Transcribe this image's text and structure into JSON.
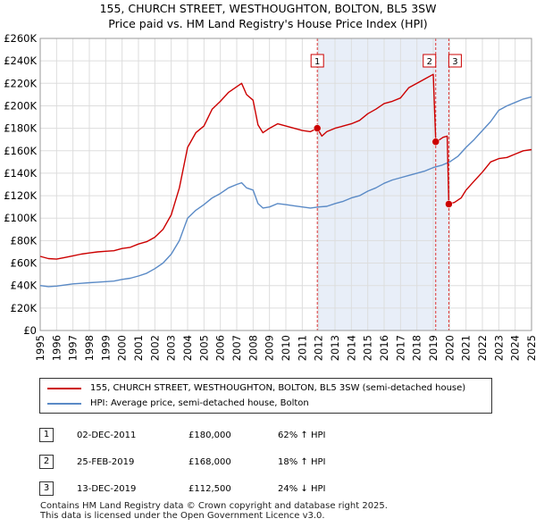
{
  "chart_data": {
    "type": "line",
    "title": "155, CHURCH STREET, WESTHOUGHTON, BOLTON, BL5 3SW",
    "subtitle": "Price paid vs. HM Land Registry's House Price Index (HPI)",
    "xlim": [
      1995,
      2025
    ],
    "ylim": [
      0,
      260000
    ],
    "x_ticks": [
      1995,
      1996,
      1997,
      1998,
      1999,
      2000,
      2001,
      2002,
      2003,
      2004,
      2005,
      2006,
      2007,
      2008,
      2009,
      2010,
      2011,
      2012,
      2013,
      2014,
      2015,
      2016,
      2017,
      2018,
      2019,
      2020,
      2021,
      2022,
      2023,
      2024,
      2025
    ],
    "y_ticks": [
      0,
      20000,
      40000,
      60000,
      80000,
      100000,
      120000,
      140000,
      160000,
      180000,
      200000,
      220000,
      240000,
      260000
    ],
    "y_tick_labels": [
      "£0",
      "£20K",
      "£40K",
      "£60K",
      "£80K",
      "£100K",
      "£120K",
      "£140K",
      "£160K",
      "£180K",
      "£200K",
      "£220K",
      "£240K",
      "£260K"
    ],
    "series": [
      {
        "name": "155, CHURCH STREET, WESTHOUGHTON, BOLTON, BL5 3SW (semi-detached house)",
        "color": "#cc0000",
        "x": [
          1995.0,
          1995.5,
          1996.0,
          1996.5,
          1997.0,
          1997.5,
          1998.0,
          1998.5,
          1999.0,
          1999.5,
          2000.0,
          2000.5,
          2001.0,
          2001.5,
          2002.0,
          2002.5,
          2003.0,
          2003.5,
          2004.0,
          2004.5,
          2005.0,
          2005.5,
          2006.0,
          2006.5,
          2007.0,
          2007.3,
          2007.6,
          2008.0,
          2008.3,
          2008.6,
          2009.0,
          2009.5,
          2010.0,
          2010.5,
          2011.0,
          2011.5,
          2011.92,
          2012.2,
          2012.5,
          2013.0,
          2013.5,
          2014.0,
          2014.5,
          2015.0,
          2015.5,
          2016.0,
          2016.5,
          2017.0,
          2017.5,
          2018.0,
          2018.5,
          2019.0,
          2019.15,
          2019.3,
          2019.6,
          2019.85,
          2019.95,
          2020.3,
          2020.7,
          2021.0,
          2021.5,
          2022.0,
          2022.5,
          2023.0,
          2023.5,
          2024.0,
          2024.5,
          2025.0
        ],
        "values": [
          66000,
          64000,
          63500,
          65000,
          66500,
          68000,
          69000,
          70000,
          70500,
          71000,
          73000,
          74000,
          77000,
          79000,
          83000,
          90000,
          103000,
          127000,
          163000,
          176000,
          182000,
          197000,
          204000,
          212000,
          217000,
          220000,
          210000,
          205000,
          183000,
          176000,
          180000,
          184000,
          182000,
          180000,
          178000,
          177000,
          180000,
          173000,
          177000,
          180000,
          182000,
          184000,
          187000,
          193000,
          197000,
          202000,
          204000,
          207000,
          216000,
          220000,
          224000,
          228000,
          168000,
          169000,
          172000,
          173000,
          112500,
          114000,
          118000,
          125000,
          133000,
          141000,
          150000,
          153000,
          154000,
          157000,
          160000,
          161000
        ]
      },
      {
        "name": "HPI: Average price, semi-detached house, Bolton",
        "color": "#5a8ac6",
        "x": [
          1995.0,
          1995.5,
          1996.0,
          1996.5,
          1997.0,
          1997.5,
          1998.0,
          1998.5,
          1999.0,
          1999.5,
          2000.0,
          2000.5,
          2001.0,
          2001.5,
          2002.0,
          2002.5,
          2003.0,
          2003.5,
          2004.0,
          2004.5,
          2005.0,
          2005.5,
          2006.0,
          2006.5,
          2007.0,
          2007.3,
          2007.6,
          2008.0,
          2008.3,
          2008.6,
          2009.0,
          2009.5,
          2010.0,
          2010.5,
          2011.0,
          2011.5,
          2012.0,
          2012.5,
          2013.0,
          2013.5,
          2014.0,
          2014.5,
          2015.0,
          2015.5,
          2016.0,
          2016.5,
          2017.0,
          2017.5,
          2018.0,
          2018.5,
          2019.0,
          2019.5,
          2020.0,
          2020.5,
          2021.0,
          2021.5,
          2022.0,
          2022.5,
          2023.0,
          2023.5,
          2024.0,
          2024.5,
          2025.0
        ],
        "values": [
          40000,
          39000,
          39500,
          40500,
          41500,
          42000,
          42500,
          43000,
          43500,
          44000,
          45500,
          46500,
          48500,
          51000,
          55000,
          60000,
          68000,
          80000,
          100000,
          107000,
          112000,
          118000,
          122000,
          127000,
          130000,
          131500,
          127000,
          125000,
          113000,
          109000,
          110000,
          113000,
          112000,
          111000,
          110000,
          109000,
          110000,
          110500,
          113000,
          115000,
          118000,
          120000,
          124000,
          127000,
          131000,
          134000,
          136000,
          138000,
          140000,
          142000,
          145000,
          147000,
          150000,
          155000,
          163000,
          170000,
          178000,
          186000,
          196000,
          200000,
          203000,
          206000,
          208000
        ]
      }
    ],
    "sale_markers": [
      {
        "label": "1",
        "x": 2011.92,
        "value": 180000
      },
      {
        "label": "2",
        "x": 2019.15,
        "value": 168000
      },
      {
        "label": "3",
        "x": 2019.95,
        "value": 112500
      }
    ],
    "shaded_region": [
      2011.92,
      2019.95
    ]
  },
  "legend": {
    "property": "155, CHURCH STREET, WESTHOUGHTON, BOLTON, BL5 3SW (semi-detached house)",
    "hpi": "HPI: Average price, semi-detached house, Bolton"
  },
  "sales": [
    {
      "num": "1",
      "date": "02-DEC-2011",
      "price": "£180,000",
      "hpi": "62% ↑ HPI"
    },
    {
      "num": "2",
      "date": "25-FEB-2019",
      "price": "£168,000",
      "hpi": "18% ↑ HPI"
    },
    {
      "num": "3",
      "date": "13-DEC-2019",
      "price": "£112,500",
      "hpi": "24% ↓ HPI"
    }
  ],
  "footer": {
    "line1": "Contains HM Land Registry data © Crown copyright and database right 2025.",
    "line2": "This data is licensed under the Open Government Licence v3.0."
  },
  "colors": {
    "property": "#cc0000",
    "hpi": "#5a8ac6",
    "shade": "#e8eef8",
    "grid": "#dddddd"
  }
}
